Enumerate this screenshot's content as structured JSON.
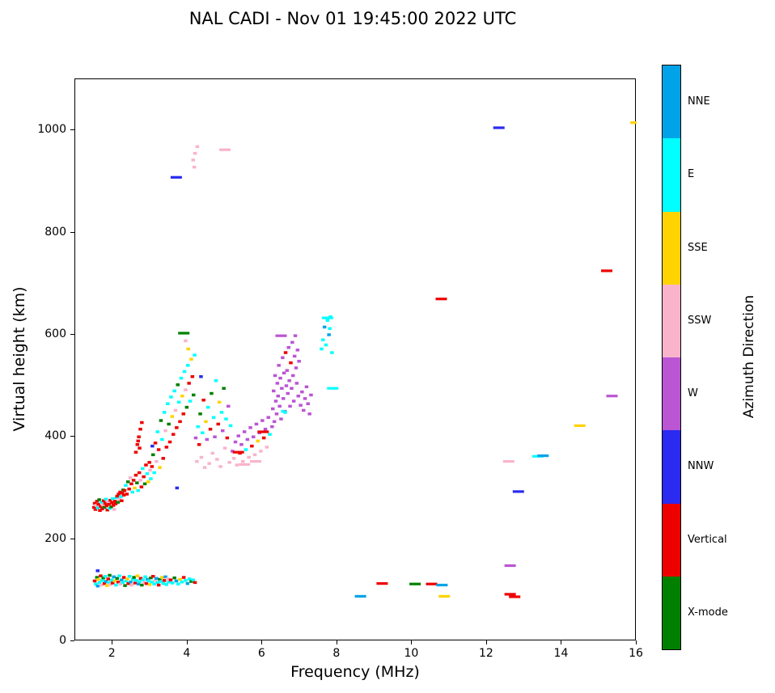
{
  "chart_data": {
    "type": "scatter",
    "title": "NAL CADI - Nov 01 19:45:00 2022 UTC",
    "xlabel": "Frequency (MHz)",
    "ylabel": "Virtual height (km)",
    "xlim": [
      1,
      16
    ],
    "ylim": [
      0,
      1100
    ],
    "xticks": [
      2,
      4,
      6,
      8,
      10,
      12,
      14,
      16
    ],
    "yticks": [
      0,
      200,
      400,
      600,
      800,
      1000
    ],
    "grid": false,
    "colorbar": {
      "label": "Azimuth Direction",
      "categories": [
        {
          "name": "X-mode",
          "color": "#008000"
        },
        {
          "name": "Vertical",
          "color": "#ee0000"
        },
        {
          "name": "NNW",
          "color": "#2a2af0"
        },
        {
          "name": "W",
          "color": "#ba55d3"
        },
        {
          "name": "SSW",
          "color": "#f9b4cc"
        },
        {
          "name": "SSE",
          "color": "#ffd300"
        },
        {
          "name": "E",
          "color": "#00ffff"
        },
        {
          "name": "NNE",
          "color": "#00a3e8"
        }
      ]
    },
    "points": [
      [
        1.52,
        118,
        1
      ],
      [
        1.55,
        112,
        6
      ],
      [
        1.58,
        125,
        0
      ],
      [
        1.6,
        108,
        7
      ],
      [
        1.62,
        121,
        5
      ],
      [
        1.65,
        115,
        6
      ],
      [
        1.68,
        128,
        1
      ],
      [
        1.7,
        110,
        4
      ],
      [
        1.72,
        119,
        6
      ],
      [
        1.75,
        124,
        0
      ],
      [
        1.78,
        113,
        1
      ],
      [
        1.8,
        127,
        6
      ],
      [
        1.82,
        117,
        7
      ],
      [
        1.85,
        109,
        5
      ],
      [
        1.88,
        122,
        1
      ],
      [
        1.9,
        115,
        6
      ],
      [
        1.92,
        129,
        0
      ],
      [
        1.95,
        111,
        4
      ],
      [
        1.98,
        120,
        6
      ],
      [
        2.0,
        114,
        1
      ],
      [
        2.03,
        126,
        7
      ],
      [
        2.06,
        118,
        5
      ],
      [
        2.09,
        110,
        6
      ],
      [
        2.12,
        123,
        0
      ],
      [
        2.15,
        116,
        1
      ],
      [
        2.18,
        128,
        6
      ],
      [
        2.21,
        112,
        4
      ],
      [
        2.24,
        120,
        7
      ],
      [
        2.27,
        115,
        6
      ],
      [
        2.3,
        125,
        1
      ],
      [
        2.33,
        109,
        0
      ],
      [
        2.36,
        118,
        6
      ],
      [
        2.39,
        122,
        5
      ],
      [
        2.42,
        113,
        1
      ],
      [
        2.45,
        127,
        6
      ],
      [
        2.48,
        116,
        7
      ],
      [
        2.51,
        110,
        4
      ],
      [
        2.54,
        121,
        6
      ],
      [
        2.57,
        125,
        0
      ],
      [
        2.6,
        114,
        1
      ],
      [
        2.63,
        119,
        6
      ],
      [
        2.66,
        128,
        5
      ],
      [
        2.69,
        112,
        7
      ],
      [
        2.72,
        117,
        6
      ],
      [
        2.75,
        123,
        1
      ],
      [
        2.78,
        110,
        0
      ],
      [
        2.81,
        120,
        6
      ],
      [
        2.84,
        115,
        4
      ],
      [
        2.87,
        126,
        6
      ],
      [
        2.9,
        113,
        1
      ],
      [
        2.93,
        121,
        7
      ],
      [
        2.96,
        118,
        6
      ],
      [
        2.99,
        111,
        5
      ],
      [
        3.02,
        124,
        0
      ],
      [
        3.05,
        116,
        6
      ],
      [
        3.08,
        127,
        1
      ],
      [
        3.11,
        112,
        6
      ],
      [
        3.14,
        119,
        4
      ],
      [
        3.17,
        123,
        7
      ],
      [
        3.2,
        115,
        6
      ],
      [
        3.23,
        110,
        1
      ],
      [
        3.26,
        121,
        0
      ],
      [
        3.29,
        117,
        6
      ],
      [
        3.32,
        125,
        5
      ],
      [
        3.35,
        113,
        6
      ],
      [
        3.38,
        119,
        1
      ],
      [
        3.41,
        126,
        7
      ],
      [
        3.44,
        111,
        6
      ],
      [
        3.47,
        122,
        4
      ],
      [
        3.5,
        116,
        6
      ],
      [
        3.55,
        120,
        1
      ],
      [
        3.6,
        114,
        6
      ],
      [
        3.65,
        124,
        0
      ],
      [
        3.7,
        118,
        7
      ],
      [
        3.75,
        112,
        6
      ],
      [
        3.8,
        121,
        5
      ],
      [
        3.85,
        116,
        6
      ],
      [
        3.9,
        125,
        1
      ],
      [
        3.95,
        119,
        6
      ],
      [
        4.0,
        113,
        7
      ],
      [
        4.05,
        122,
        6
      ],
      [
        4.1,
        117,
        0
      ],
      [
        4.15,
        120,
        6
      ],
      [
        4.2,
        115,
        1
      ],
      [
        1.6,
        138,
        2
      ],
      [
        1.5,
        262,
        1
      ],
      [
        1.52,
        270,
        1
      ],
      [
        1.54,
        258,
        1
      ],
      [
        1.56,
        266,
        4
      ],
      [
        1.58,
        274,
        1
      ],
      [
        1.6,
        261,
        6
      ],
      [
        1.62,
        268,
        1
      ],
      [
        1.64,
        277,
        0
      ],
      [
        1.66,
        256,
        1
      ],
      [
        1.68,
        264,
        1
      ],
      [
        1.7,
        272,
        6
      ],
      [
        1.72,
        259,
        1
      ],
      [
        1.74,
        267,
        4
      ],
      [
        1.76,
        275,
        1
      ],
      [
        1.78,
        262,
        0
      ],
      [
        1.8,
        270,
        1
      ],
      [
        1.82,
        278,
        6
      ],
      [
        1.84,
        265,
        1
      ],
      [
        1.86,
        257,
        1
      ],
      [
        1.88,
        273,
        4
      ],
      [
        1.9,
        268,
        1
      ],
      [
        1.92,
        260,
        6
      ],
      [
        1.94,
        276,
        1
      ],
      [
        1.96,
        263,
        0
      ],
      [
        1.98,
        271,
        1
      ],
      [
        2.0,
        279,
        6
      ],
      [
        2.02,
        266,
        1
      ],
      [
        2.04,
        258,
        4
      ],
      [
        2.06,
        274,
        1
      ],
      [
        2.08,
        269,
        1
      ],
      [
        2.1,
        281,
        6
      ],
      [
        2.12,
        284,
        1
      ],
      [
        2.14,
        272,
        0
      ],
      [
        2.16,
        288,
        1
      ],
      [
        2.18,
        278,
        4
      ],
      [
        2.2,
        292,
        1
      ],
      [
        2.22,
        283,
        6
      ],
      [
        2.24,
        275,
        1
      ],
      [
        2.26,
        290,
        1
      ],
      [
        2.28,
        296,
        0
      ],
      [
        2.3,
        286,
        1
      ],
      [
        2.32,
        295,
        1
      ],
      [
        2.35,
        305,
        6
      ],
      [
        2.38,
        288,
        1
      ],
      [
        2.41,
        312,
        0
      ],
      [
        2.44,
        298,
        1
      ],
      [
        2.47,
        320,
        4
      ],
      [
        2.5,
        308,
        1
      ],
      [
        2.53,
        292,
        6
      ],
      [
        2.56,
        315,
        1
      ],
      [
        2.59,
        300,
        5
      ],
      [
        2.62,
        325,
        1
      ],
      [
        2.65,
        310,
        0
      ],
      [
        2.68,
        295,
        6
      ],
      [
        2.71,
        330,
        1
      ],
      [
        2.74,
        315,
        4
      ],
      [
        2.77,
        302,
        1
      ],
      [
        2.8,
        338,
        6
      ],
      [
        2.83,
        322,
        1
      ],
      [
        2.86,
        308,
        0
      ],
      [
        2.89,
        345,
        1
      ],
      [
        2.92,
        328,
        6
      ],
      [
        2.95,
        312,
        5
      ],
      [
        2.98,
        350,
        1
      ],
      [
        3.0,
        335,
        4
      ],
      [
        2.62,
        370,
        1
      ],
      [
        2.66,
        385,
        1
      ],
      [
        2.7,
        400,
        1
      ],
      [
        2.74,
        415,
        1
      ],
      [
        2.78,
        428,
        1
      ],
      [
        2.72,
        378,
        1
      ],
      [
        2.68,
        392,
        1
      ],
      [
        3.02,
        318,
        6
      ],
      [
        3.05,
        342,
        1
      ],
      [
        3.08,
        365,
        0
      ],
      [
        3.11,
        330,
        6
      ],
      [
        3.14,
        388,
        1
      ],
      [
        3.17,
        352,
        4
      ],
      [
        3.2,
        410,
        6
      ],
      [
        3.23,
        375,
        1
      ],
      [
        3.26,
        340,
        5
      ],
      [
        3.29,
        432,
        0
      ],
      [
        3.32,
        395,
        6
      ],
      [
        3.35,
        358,
        1
      ],
      [
        3.38,
        448,
        6
      ],
      [
        3.41,
        412,
        4
      ],
      [
        3.44,
        380,
        1
      ],
      [
        3.47,
        465,
        6
      ],
      [
        3.5,
        425,
        0
      ],
      [
        3.53,
        390,
        1
      ],
      [
        3.56,
        478,
        6
      ],
      [
        3.59,
        440,
        5
      ],
      [
        3.62,
        405,
        1
      ],
      [
        3.65,
        490,
        6
      ],
      [
        3.68,
        452,
        4
      ],
      [
        3.71,
        418,
        1
      ],
      [
        3.74,
        502,
        0
      ],
      [
        3.77,
        468,
        6
      ],
      [
        3.8,
        430,
        1
      ],
      [
        3.83,
        515,
        6
      ],
      [
        3.86,
        480,
        5
      ],
      [
        3.89,
        445,
        1
      ],
      [
        3.92,
        528,
        6
      ],
      [
        3.95,
        492,
        4
      ],
      [
        3.98,
        458,
        0
      ],
      [
        4.01,
        540,
        6
      ],
      [
        4.04,
        505,
        1
      ],
      [
        4.07,
        470,
        6
      ],
      [
        4.1,
        552,
        5
      ],
      [
        4.13,
        518,
        1
      ],
      [
        4.16,
        482,
        0
      ],
      [
        4.19,
        560,
        6
      ],
      [
        3.95,
        588,
        4
      ],
      [
        4.02,
        572,
        5
      ],
      [
        4.22,
        398,
        3
      ],
      [
        4.25,
        352,
        4
      ],
      [
        4.28,
        420,
        6
      ],
      [
        4.31,
        385,
        1
      ],
      [
        4.34,
        445,
        0
      ],
      [
        4.37,
        360,
        4
      ],
      [
        4.4,
        408,
        6
      ],
      [
        4.43,
        472,
        1
      ],
      [
        4.46,
        340,
        4
      ],
      [
        4.49,
        430,
        5
      ],
      [
        4.52,
        395,
        3
      ],
      [
        4.55,
        458,
        6
      ],
      [
        4.58,
        348,
        4
      ],
      [
        4.61,
        415,
        1
      ],
      [
        4.64,
        485,
        0
      ],
      [
        4.67,
        368,
        4
      ],
      [
        4.7,
        438,
        6
      ],
      [
        4.73,
        400,
        3
      ],
      [
        4.76,
        510,
        6
      ],
      [
        4.79,
        356,
        4
      ],
      [
        4.82,
        425,
        1
      ],
      [
        4.85,
        468,
        5
      ],
      [
        4.88,
        342,
        4
      ],
      [
        4.91,
        448,
        6
      ],
      [
        4.94,
        412,
        3
      ],
      [
        4.97,
        495,
        0
      ],
      [
        5.0,
        378,
        4
      ],
      [
        5.03,
        435,
        6
      ],
      [
        5.06,
        398,
        1
      ],
      [
        5.09,
        460,
        3
      ],
      [
        5.12,
        350,
        4
      ],
      [
        5.15,
        422,
        6
      ],
      [
        5.2,
        372,
        3
      ],
      [
        5.24,
        358,
        4
      ],
      [
        5.28,
        390,
        3
      ],
      [
        5.32,
        345,
        4
      ],
      [
        5.36,
        402,
        3
      ],
      [
        5.4,
        368,
        1
      ],
      [
        5.44,
        385,
        3
      ],
      [
        5.48,
        352,
        4
      ],
      [
        5.52,
        410,
        3
      ],
      [
        5.56,
        375,
        6
      ],
      [
        5.6,
        395,
        3
      ],
      [
        5.64,
        360,
        4
      ],
      [
        5.68,
        418,
        3
      ],
      [
        5.72,
        382,
        1
      ],
      [
        5.76,
        400,
        3
      ],
      [
        5.8,
        365,
        4
      ],
      [
        5.84,
        425,
        3
      ],
      [
        5.88,
        392,
        5
      ],
      [
        5.92,
        408,
        3
      ],
      [
        5.96,
        372,
        4
      ],
      [
        6.0,
        432,
        3
      ],
      [
        6.04,
        398,
        1
      ],
      [
        6.08,
        415,
        3
      ],
      [
        6.12,
        380,
        4
      ],
      [
        6.16,
        438,
        3
      ],
      [
        6.2,
        405,
        6
      ],
      [
        6.26,
        420,
        3
      ],
      [
        6.28,
        455,
        3
      ],
      [
        6.3,
        490,
        3
      ],
      [
        6.32,
        430,
        3
      ],
      [
        6.34,
        520,
        3
      ],
      [
        6.36,
        470,
        3
      ],
      [
        6.38,
        445,
        3
      ],
      [
        6.4,
        505,
        3
      ],
      [
        6.42,
        480,
        3
      ],
      [
        6.44,
        540,
        3
      ],
      [
        6.46,
        460,
        3
      ],
      [
        6.48,
        515,
        3
      ],
      [
        6.5,
        435,
        3
      ],
      [
        6.52,
        495,
        3
      ],
      [
        6.54,
        555,
        3
      ],
      [
        6.56,
        475,
        3
      ],
      [
        6.58,
        525,
        3
      ],
      [
        6.6,
        450,
        3
      ],
      [
        6.62,
        565,
        1
      ],
      [
        6.64,
        500,
        3
      ],
      [
        6.66,
        530,
        3
      ],
      [
        6.68,
        485,
        3
      ],
      [
        6.7,
        575,
        3
      ],
      [
        6.72,
        510,
        3
      ],
      [
        6.74,
        460,
        3
      ],
      [
        6.76,
        545,
        1
      ],
      [
        6.78,
        495,
        3
      ],
      [
        6.8,
        585,
        3
      ],
      [
        6.82,
        520,
        3
      ],
      [
        6.84,
        470,
        3
      ],
      [
        6.86,
        558,
        3
      ],
      [
        6.88,
        598,
        3
      ],
      [
        6.9,
        535,
        3
      ],
      [
        6.92,
        505,
        3
      ],
      [
        6.94,
        570,
        3
      ],
      [
        6.96,
        480,
        3
      ],
      [
        6.98,
        548,
        3
      ],
      [
        6.55,
        450,
        6
      ],
      [
        6.61,
        448,
        6
      ],
      [
        7.02,
        462,
        3
      ],
      [
        7.06,
        488,
        3
      ],
      [
        7.1,
        452,
        3
      ],
      [
        7.14,
        475,
        3
      ],
      [
        7.18,
        498,
        3
      ],
      [
        7.22,
        465,
        3
      ],
      [
        7.26,
        445,
        3
      ],
      [
        7.3,
        482,
        3
      ],
      [
        7.58,
        572,
        6
      ],
      [
        7.62,
        590,
        6
      ],
      [
        7.66,
        615,
        7
      ],
      [
        7.7,
        580,
        6
      ],
      [
        7.74,
        628,
        6
      ],
      [
        7.78,
        600,
        7
      ],
      [
        7.82,
        635,
        6
      ],
      [
        7.86,
        565,
        6
      ],
      [
        7.8,
        612,
        6
      ],
      [
        4.15,
        942,
        4
      ],
      [
        4.2,
        955,
        4
      ],
      [
        4.26,
        968,
        4
      ],
      [
        4.18,
        928,
        4
      ],
      [
        3.06,
        382,
        2
      ],
      [
        4.36,
        518,
        2
      ],
      [
        3.72,
        300,
        2
      ]
    ],
    "dashes": [
      [
        3.9,
        603,
        0
      ],
      [
        5.36,
        370,
        1
      ],
      [
        5.52,
        346,
        4
      ],
      [
        5.82,
        352,
        4
      ],
      [
        6.02,
        410,
        1
      ],
      [
        6.5,
        598,
        3
      ],
      [
        7.74,
        633,
        6
      ],
      [
        7.88,
        495,
        6
      ],
      [
        5.0,
        962,
        4
      ],
      [
        3.7,
        908,
        2
      ],
      [
        8.62,
        88,
        7
      ],
      [
        9.2,
        113,
        1
      ],
      [
        10.08,
        112,
        0
      ],
      [
        10.52,
        112,
        1
      ],
      [
        10.8,
        110,
        7
      ],
      [
        10.86,
        88,
        5
      ],
      [
        10.78,
        670,
        1
      ],
      [
        12.32,
        1005,
        2
      ],
      [
        12.58,
        352,
        4
      ],
      [
        12.62,
        92,
        1
      ],
      [
        12.74,
        87,
        1
      ],
      [
        12.62,
        148,
        3
      ],
      [
        12.84,
        293,
        2
      ],
      [
        13.36,
        362,
        6
      ],
      [
        13.5,
        363,
        7
      ],
      [
        14.48,
        422,
        5
      ],
      [
        15.2,
        725,
        1
      ],
      [
        15.34,
        480,
        3
      ],
      [
        15.98,
        1015,
        5
      ]
    ]
  }
}
